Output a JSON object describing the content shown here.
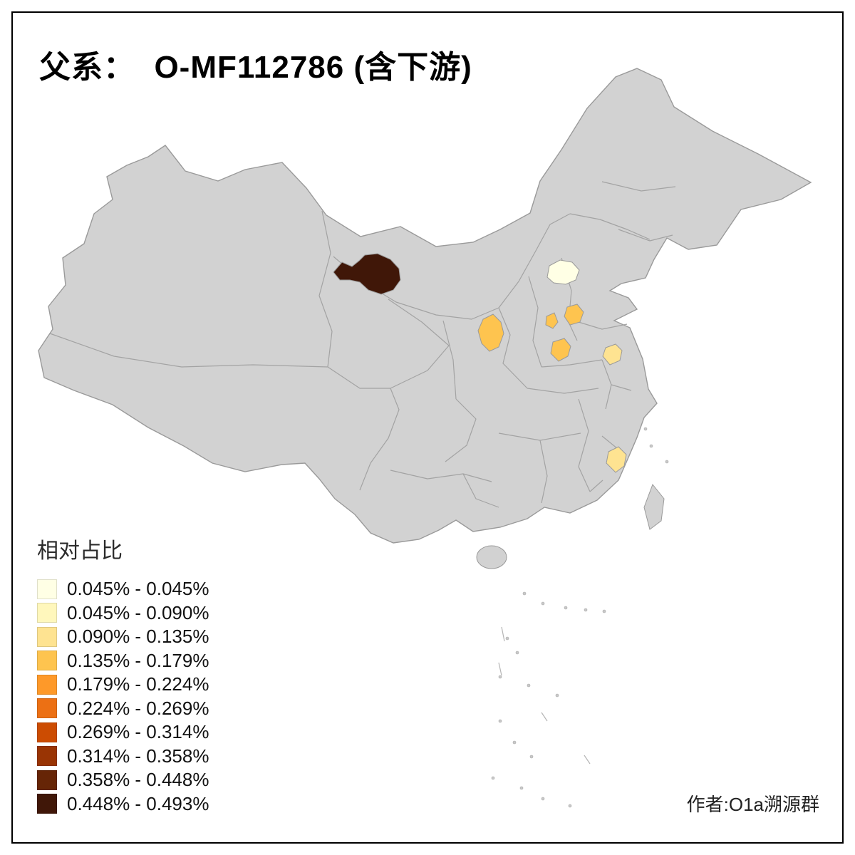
{
  "title": "父系：  O-MF112786 (含下游)",
  "attribution": "作者:O1a溯源群",
  "legend": {
    "title": "相对占比",
    "items": [
      {
        "label": "0.045% - 0.045%",
        "color": "#FFFFE5"
      },
      {
        "label": "0.045% - 0.090%",
        "color": "#FFF7BC"
      },
      {
        "label": "0.090% - 0.135%",
        "color": "#FEE391"
      },
      {
        "label": "0.135% - 0.179%",
        "color": "#FEC44F"
      },
      {
        "label": "0.179% - 0.224%",
        "color": "#FE9929"
      },
      {
        "label": "0.224% - 0.269%",
        "color": "#EC7014"
      },
      {
        "label": "0.269% - 0.314%",
        "color": "#CC4C02"
      },
      {
        "label": "0.314% - 0.358%",
        "color": "#993404"
      },
      {
        "label": "0.358% - 0.448%",
        "color": "#662506"
      },
      {
        "label": "0.448% - 0.493%",
        "color": "#401708"
      }
    ]
  },
  "map": {
    "land_color": "#D2D2D2",
    "boundary_color": "#A3A3A3",
    "sea_background": "#FFFFFF",
    "regions": [
      {
        "id": "region-northwest-dark",
        "color": "#401708"
      },
      {
        "id": "region-hebei-cream",
        "color": "#FFFFE5"
      },
      {
        "id": "region-gansu-orange",
        "color": "#FEC44F"
      },
      {
        "id": "region-shanxi-orange",
        "color": "#FEC44F"
      },
      {
        "id": "region-shaanxi-orange",
        "color": "#FEC44F"
      },
      {
        "id": "region-henan-orange",
        "color": "#FEC44F"
      },
      {
        "id": "region-jiangsu-yellow",
        "color": "#FEE391"
      },
      {
        "id": "region-fujian-yellow",
        "color": "#FEE391"
      }
    ]
  }
}
